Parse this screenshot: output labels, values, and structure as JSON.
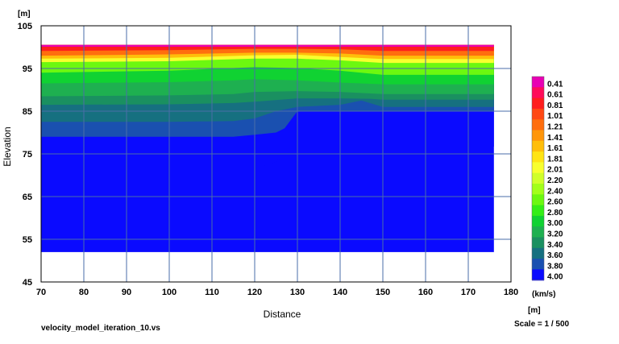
{
  "chart_data": {
    "type": "heatmap",
    "xlabel": "Distance",
    "ylabel": "Elevation",
    "x_unit": "[m]",
    "y_unit": "[m]",
    "xlim": [
      70,
      180
    ],
    "ylim": [
      45,
      105
    ],
    "xticks": [
      70,
      80,
      90,
      100,
      110,
      120,
      130,
      140,
      150,
      160,
      170,
      180
    ],
    "yticks": [
      45,
      55,
      65,
      75,
      85,
      95,
      105
    ],
    "model_extent": {
      "x": [
        70,
        176
      ],
      "y": [
        52,
        100.5
      ]
    },
    "surface_elevation": 100.5,
    "colorbar": {
      "unit": "(km/s)",
      "levels": [
        "0.41",
        "0.61",
        "0.81",
        "1.01",
        "1.21",
        "1.41",
        "1.61",
        "1.81",
        "2.01",
        "2.20",
        "2.40",
        "2.60",
        "2.80",
        "3.00",
        "3.20",
        "3.40",
        "3.60",
        "3.80",
        "4.00"
      ],
      "colors": [
        "#e800b4",
        "#ff0c5a",
        "#ff1e1e",
        "#ff4814",
        "#ff6e0e",
        "#ff960a",
        "#ffbe0a",
        "#ffe414",
        "#f8ff2e",
        "#d0ff2a",
        "#a2ff1a",
        "#6cf810",
        "#34ee16",
        "#10d232",
        "#1eb050",
        "#1a9060",
        "#167080",
        "#1a50b0",
        "#0a0aff"
      ]
    },
    "velocity_contours": [
      {
        "velocity": "0.41",
        "depth_x": [
          70,
          100,
          120,
          130,
          140,
          150,
          176
        ],
        "depth": [
          0.4,
          0.4,
          0.4,
          0.4,
          0.4,
          0.4,
          0.4
        ]
      },
      {
        "velocity": "0.81",
        "depth_x": [
          70,
          100,
          120,
          130,
          140,
          150,
          176
        ],
        "depth": [
          1.4,
          1.2,
          0.9,
          0.9,
          1.0,
          1.4,
          1.4
        ]
      },
      {
        "velocity": "1.21",
        "depth_x": [
          70,
          100,
          120,
          130,
          140,
          150,
          176
        ],
        "depth": [
          2.5,
          2.2,
          1.8,
          1.8,
          2.0,
          2.5,
          2.5
        ]
      },
      {
        "velocity": "1.61",
        "depth_x": [
          70,
          100,
          120,
          130,
          140,
          150,
          176
        ],
        "depth": [
          3.2,
          3.0,
          2.4,
          2.3,
          2.8,
          3.3,
          3.3
        ]
      },
      {
        "velocity": "2.01",
        "depth_x": [
          70,
          100,
          120,
          130,
          140,
          150,
          176
        ],
        "depth": [
          4.0,
          3.8,
          3.2,
          3.2,
          3.6,
          4.2,
          4.2
        ]
      },
      {
        "velocity": "2.60",
        "depth_x": [
          70,
          100,
          120,
          130,
          140,
          150,
          176
        ],
        "depth": [
          6.5,
          6.0,
          5.2,
          5.4,
          6.0,
          7.0,
          7.0
        ]
      },
      {
        "velocity": "3.00",
        "depth_x": [
          70,
          100,
          115,
          120,
          130,
          140,
          150,
          176
        ],
        "depth": [
          9.0,
          8.7,
          8.3,
          8.0,
          8.3,
          8.8,
          9.2,
          9.2
        ]
      },
      {
        "velocity": "3.20",
        "depth_x": [
          70,
          100,
          115,
          120,
          130,
          140,
          150,
          176
        ],
        "depth": [
          12.0,
          11.8,
          11.5,
          11.0,
          10.8,
          11.0,
          11.5,
          11.5
        ]
      },
      {
        "velocity": "3.40",
        "depth_x": [
          70,
          100,
          115,
          120,
          130,
          140,
          147,
          150,
          176
        ],
        "depth": [
          14.0,
          13.9,
          13.6,
          13.3,
          12.5,
          12.5,
          12.6,
          12.8,
          12.8
        ]
      },
      {
        "velocity": "3.60",
        "depth_x": [
          70,
          100,
          115,
          120,
          125,
          130,
          140,
          145,
          150,
          176
        ],
        "depth": [
          18.0,
          18.0,
          17.8,
          17.2,
          15.5,
          14.5,
          14.0,
          13.0,
          14.5,
          14.5
        ]
      },
      {
        "velocity": "3.80",
        "depth_x": [
          70,
          100,
          115,
          120,
          125,
          127,
          130,
          150,
          176
        ],
        "depth": [
          21.5,
          21.5,
          21.5,
          21.0,
          20.5,
          19.5,
          15.5,
          15.5,
          15.5
        ]
      },
      {
        "velocity": "4.00",
        "depth_x": [
          70,
          100,
          115,
          120,
          124,
          126,
          127,
          130,
          150,
          176
        ],
        "depth": [
          28.8,
          28.8,
          28.8,
          28.6,
          28.0,
          26.5,
          24.0,
          23.8,
          23.8,
          23.8
        ]
      }
    ],
    "scale_text": "Scale = 1 / 500",
    "filename": "velocity_model_iteration_10.vs"
  }
}
